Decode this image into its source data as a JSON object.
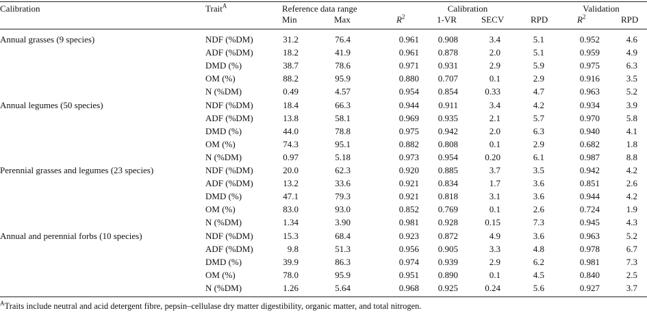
{
  "header": {
    "calibration_col": "Calibration",
    "trait_col": "Trait",
    "trait_sup": "A",
    "ref_range_group": "Reference data range",
    "ref_min": "Min",
    "ref_max": "Max",
    "r2_a": "R",
    "r2_a_sup": "2",
    "calib_group": "Calibration",
    "vr": "1-VR",
    "secv": "SECV",
    "rpd_a": "RPD",
    "valid_group": "Validation",
    "r2_b": "R",
    "r2_b_sup": "2",
    "rpd_b": "RPD"
  },
  "groups": [
    {
      "name": "Annual grasses (9 species)",
      "rows": [
        [
          "NDF (%DM)",
          "31.2",
          "76.4",
          "0.961",
          "0.908",
          "3.4",
          "5.1",
          "0.952",
          "4.6"
        ],
        [
          "ADF (%DM)",
          "18.2",
          "41.9",
          "0.961",
          "0.878",
          "2.0",
          "5.1",
          "0.959",
          "4.9"
        ],
        [
          "DMD (%)",
          "38.7",
          "78.6",
          "0.971",
          "0.931",
          "2.9",
          "5.9",
          "0.975",
          "6.3"
        ],
        [
          "OM (%)",
          "88.2",
          "95.9",
          "0.880",
          "0.707",
          "0.1",
          "2.9",
          "0.916",
          "3.5"
        ],
        [
          "N (%DM)",
          "0.49",
          "4.57",
          "0.954",
          "0.854",
          "0.33",
          "4.7",
          "0.963",
          "5.2"
        ]
      ]
    },
    {
      "name": "Annual legumes (50 species)",
      "rows": [
        [
          "NDF (%DM)",
          "18.4",
          "66.3",
          "0.944",
          "0.911",
          "3.4",
          "4.2",
          "0.934",
          "3.9"
        ],
        [
          "ADF (%DM)",
          "13.8",
          "58.1",
          "0.969",
          "0.935",
          "2.1",
          "5.7",
          "0.970",
          "5.8"
        ],
        [
          "DMD (%)",
          "44.0",
          "78.8",
          "0.975",
          "0.942",
          "2.0",
          "6.3",
          "0.940",
          "4.1"
        ],
        [
          "OM (%)",
          "74.3",
          "95.1",
          "0.882",
          "0.808",
          "0.1",
          "2.9",
          "0.682",
          "1.8"
        ],
        [
          "N (%DM)",
          "0.97",
          "5.18",
          "0.973",
          "0.954",
          "0.20",
          "6.1",
          "0.987",
          "8.8"
        ]
      ]
    },
    {
      "name": "Perennial grasses and legumes (23 species)",
      "rows": [
        [
          "NDF (%DM)",
          "20.0",
          "62.3",
          "0.920",
          "0.885",
          "3.7",
          "3.5",
          "0.942",
          "4.2"
        ],
        [
          "ADF (%DM)",
          "13.2",
          "33.6",
          "0.921",
          "0.834",
          "1.7",
          "3.6",
          "0.851",
          "2.6"
        ],
        [
          "DMD (%)",
          "47.1",
          "79.3",
          "0.921",
          "0.818",
          "3.1",
          "3.6",
          "0.944",
          "4.2"
        ],
        [
          "OM (%)",
          "83.0",
          "93.0",
          "0.852",
          "0.769",
          "0.1",
          "2.6",
          "0.724",
          "1.9"
        ],
        [
          "N (%DM)",
          "1.34",
          "3.90",
          "0.981",
          "0.928",
          "0.15",
          "7.3",
          "0.945",
          "4.3"
        ]
      ]
    },
    {
      "name": "Annual and perennial forbs (10 species)",
      "rows": [
        [
          "NDF (%DM)",
          "15.3",
          "68.4",
          "0.923",
          "0.872",
          "4.9",
          "3.6",
          "0.963",
          "5.2"
        ],
        [
          "ADF (%DM)",
          "9.8",
          "51.3",
          "0.956",
          "0.905",
          "3.3",
          "4.8",
          "0.978",
          "6.7"
        ],
        [
          "DMD (%)",
          "39.9",
          "86.3",
          "0.974",
          "0.939",
          "2.9",
          "6.2",
          "0.981",
          "7.3"
        ],
        [
          "OM (%)",
          "78.0",
          "95.9",
          "0.951",
          "0.890",
          "0.1",
          "4.5",
          "0.840",
          "2.5"
        ],
        [
          "N (%DM)",
          "1.26",
          "5.64",
          "0.968",
          "0.925",
          "0.24",
          "5.6",
          "0.927",
          "3.7"
        ]
      ]
    }
  ],
  "footnote": {
    "mark": "A",
    "text": "Traits include neutral and acid detergent fibre, pepsin–cellulase dry matter digestibility, organic matter, and total nitrogen."
  }
}
